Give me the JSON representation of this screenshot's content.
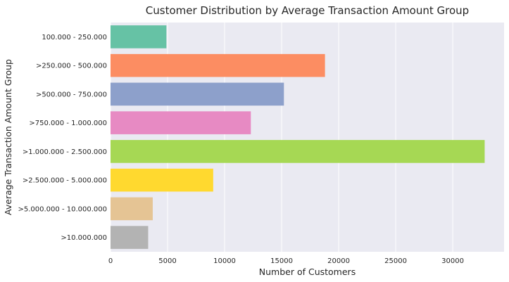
{
  "chart_data": {
    "type": "bar",
    "orientation": "horizontal",
    "title": "Customer Distribution by Average Transaction Amount Group",
    "xlabel": "Number of Customers",
    "ylabel": "Average Transaction Amount Group",
    "categories": [
      "100.000 - 250.000",
      ">250.000 - 500.000",
      ">500.000 - 750.000",
      ">750.000 - 1.000.000",
      ">1.000.000 - 2.500.000",
      ">2.500.000 - 5.000.000",
      ">5.000.000 - 10.000.000",
      ">10.000.000"
    ],
    "values": [
      4900,
      18800,
      15200,
      12300,
      32800,
      9000,
      3700,
      3300
    ],
    "colors": [
      "#66c2a5",
      "#fc8d62",
      "#8da0cb",
      "#e78ac3",
      "#a6d854",
      "#ffd92f",
      "#e5c494",
      "#b3b3b3"
    ],
    "xlim": [
      0,
      34500
    ],
    "xticks": [
      0,
      5000,
      10000,
      15000,
      20000,
      25000,
      30000
    ],
    "grid": true,
    "background": "#eaeaf2"
  }
}
